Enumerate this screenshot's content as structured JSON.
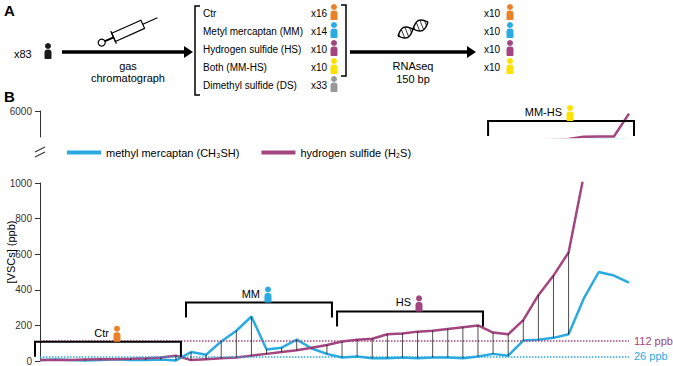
{
  "panel_a": {
    "label": "A",
    "source": {
      "count": "x83",
      "color": "#1a1a1a"
    },
    "step1": {
      "label_lines": [
        "gas",
        "chromatograph"
      ]
    },
    "groups": [
      {
        "name": "Ctr",
        "count": "x16",
        "color": "#e8822a"
      },
      {
        "name": "Metyl mercaptan (MM)",
        "count": "x14",
        "color": "#29abe2"
      },
      {
        "name": "Hydrogen sulfide (HS)",
        "count": "x10",
        "color": "#a3457f"
      },
      {
        "name": "Both (MM-HS)",
        "count": "x10",
        "color": "#ffe100"
      },
      {
        "name": "Dimethyl sulfide (DS)",
        "count": "x33",
        "color": "#999999"
      }
    ],
    "step2": {
      "label_lines": [
        "RNAseq",
        "150 bp"
      ]
    },
    "sequenced": [
      {
        "count": "x10",
        "color": "#e8822a"
      },
      {
        "count": "x10",
        "color": "#29abe2"
      },
      {
        "count": "x10",
        "color": "#a3457f"
      },
      {
        "count": "x10",
        "color": "#ffe100"
      }
    ]
  },
  "chart_data": {
    "type": "line",
    "panel_label": "B",
    "y_label": "[VSCs] (ppb)",
    "categories": [
      null,
      null,
      null,
      null,
      null,
      null,
      null,
      null,
      null,
      null,
      null,
      null,
      null,
      null,
      null,
      null,
      null,
      null,
      null,
      null,
      null,
      null,
      null,
      null,
      null,
      null,
      null,
      null,
      null,
      null,
      null,
      null,
      null,
      null,
      null,
      null,
      null,
      null,
      null,
      null
    ],
    "ylim": [
      0,
      6000
    ],
    "yticks": [
      0,
      200,
      400,
      600,
      800,
      1000,
      6000
    ],
    "tick_labels": "y",
    "grid": false,
    "legend": "upper left",
    "series": [
      {
        "name": "methyl mercaptan (CH₃SH)",
        "color": "#29abe2",
        "values": [
          5,
          8,
          5,
          3,
          5,
          10,
          5,
          5,
          8,
          3,
          50,
          35,
          110,
          170,
          250,
          65,
          75,
          120,
          70,
          40,
          20,
          25,
          15,
          15,
          20,
          15,
          20,
          20,
          15,
          25,
          40,
          30,
          115,
          120,
          130,
          150,
          350,
          500,
          480,
          440
        ],
        "threshold": 26,
        "threshold_label": "26 ppb"
      },
      {
        "name": "hydrogen sulfide (H₂S)",
        "color": "#a3457f",
        "values": [
          5,
          5,
          5,
          8,
          10,
          10,
          12,
          15,
          20,
          30,
          5,
          10,
          15,
          20,
          30,
          40,
          50,
          60,
          75,
          90,
          110,
          120,
          125,
          150,
          155,
          165,
          170,
          180,
          190,
          200,
          160,
          150,
          230,
          370,
          480,
          610,
          1040,
          1080,
          1100,
          5500
        ],
        "threshold": 112,
        "threshold_label": "112 ppb"
      }
    ],
    "groups": [
      {
        "label": "Ctr",
        "color": "#e8822a",
        "start": 0,
        "end": 9
      },
      {
        "label": "MM",
        "color": "#29abe2",
        "start": 10,
        "end": 19
      },
      {
        "label": "HS",
        "color": "#a3457f",
        "start": 20,
        "end": 29
      },
      {
        "label": "MM-HS",
        "color": "#ffe100",
        "start": 30,
        "end": 39
      }
    ]
  }
}
